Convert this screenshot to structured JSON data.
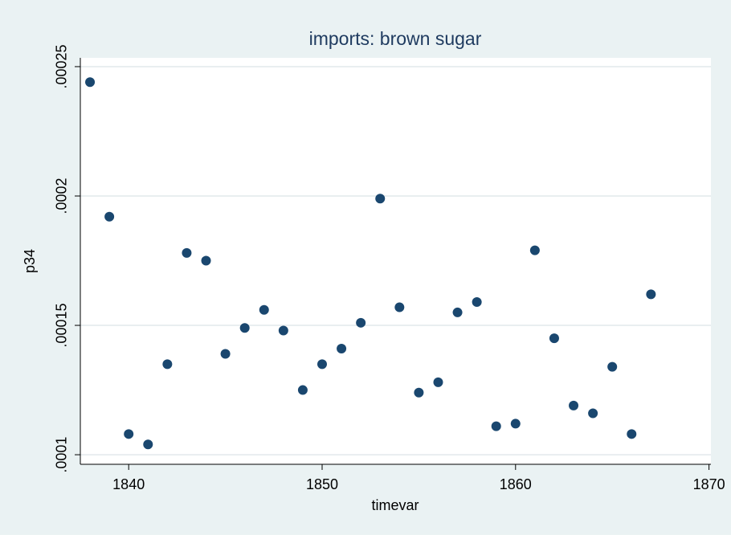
{
  "chart_data": {
    "type": "scatter",
    "title": "imports: brown sugar",
    "x_label": "timevar",
    "y_label": "p34",
    "series": [
      {
        "name": "p34",
        "color": "#1a476f",
        "x": [
          1838,
          1839,
          1840,
          1841,
          1842,
          1843,
          1844,
          1845,
          1846,
          1847,
          1848,
          1849,
          1850,
          1851,
          1852,
          1853,
          1854,
          1855,
          1856,
          1857,
          1858,
          1859,
          1860,
          1861,
          1862,
          1863,
          1864,
          1865,
          1866,
          1867
        ],
        "values": [
          0.000244,
          0.000192,
          0.000108,
          0.000104,
          0.000135,
          0.000178,
          0.000175,
          0.000139,
          0.000149,
          0.000156,
          0.000148,
          0.000125,
          0.000135,
          0.000141,
          0.000151,
          0.000199,
          0.000157,
          0.000124,
          0.000128,
          0.000155,
          0.000159,
          0.000111,
          0.000112,
          0.000179,
          0.000145,
          0.000119,
          0.000116,
          0.000134,
          0.000108,
          0.000162
        ]
      }
    ],
    "xlim": [
      1837.5,
      1870.1
    ],
    "xticks": [
      1840,
      1850,
      1860,
      1870
    ],
    "ylim": [
      9.63e-05,
      0.0002534
    ],
    "yticks": [
      {
        "value": 0.0001,
        "label": ".0001"
      },
      {
        "value": 0.00015,
        "label": ".00015"
      },
      {
        "value": 0.0002,
        "label": ".0002"
      },
      {
        "value": 0.00025,
        "label": ".00025"
      }
    ],
    "grid": true
  }
}
